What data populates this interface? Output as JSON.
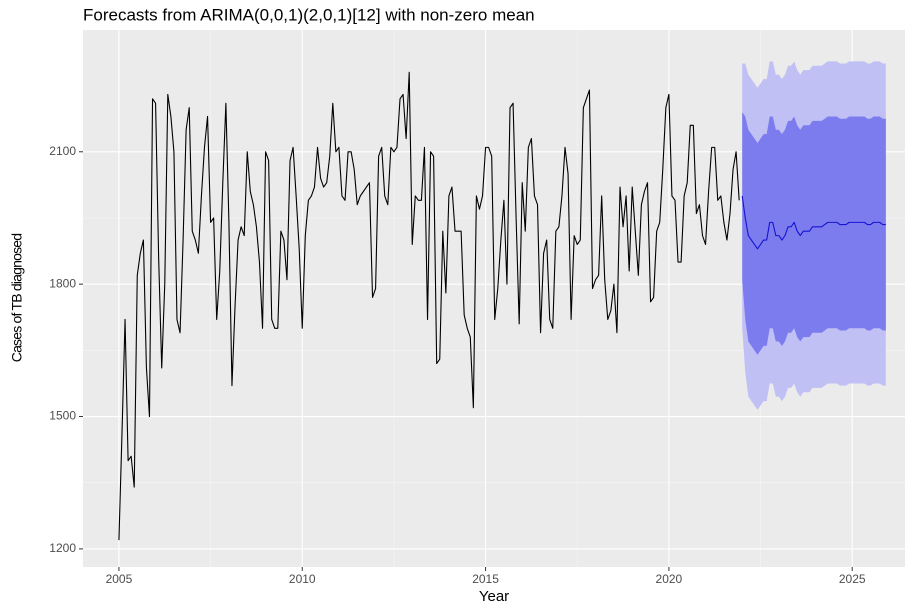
{
  "chart_data": {
    "type": "line",
    "title": "Forecasts from ARIMA(0,0,1)(2,0,1)[12] with non-zero mean",
    "xlabel": "Year",
    "ylabel": "Cases of TB diagnosed",
    "xlim": [
      2004.02,
      2026.44
    ],
    "ylim": [
      1159,
      2376
    ],
    "xticks": [
      2005,
      2010,
      2015,
      2020,
      2025
    ],
    "yticks": [
      1200,
      1500,
      1800,
      2100
    ],
    "grid": true,
    "series": [
      {
        "color": "#000000",
        "x": [
          2005,
          2005.083,
          2005.167,
          2005.25,
          2005.333,
          2005.417,
          2005.5,
          2005.583,
          2005.667,
          2005.75,
          2005.833,
          2005.917,
          2006,
          2006.083,
          2006.167,
          2006.25,
          2006.333,
          2006.417,
          2006.5,
          2006.583,
          2006.667,
          2006.75,
          2006.833,
          2006.917,
          2007,
          2007.083,
          2007.167,
          2007.25,
          2007.333,
          2007.417,
          2007.5,
          2007.583,
          2007.667,
          2007.75,
          2007.833,
          2007.917,
          2008,
          2008.083,
          2008.167,
          2008.25,
          2008.333,
          2008.417,
          2008.5,
          2008.583,
          2008.667,
          2008.75,
          2008.833,
          2008.917,
          2009,
          2009.083,
          2009.167,
          2009.25,
          2009.333,
          2009.417,
          2009.5,
          2009.583,
          2009.667,
          2009.75,
          2009.833,
          2009.917,
          2010,
          2010.083,
          2010.167,
          2010.25,
          2010.333,
          2010.417,
          2010.5,
          2010.583,
          2010.667,
          2010.75,
          2010.833,
          2010.917,
          2011,
          2011.083,
          2011.167,
          2011.25,
          2011.333,
          2011.417,
          2011.5,
          2011.583,
          2011.667,
          2011.75,
          2011.833,
          2011.917,
          2012,
          2012.083,
          2012.167,
          2012.25,
          2012.333,
          2012.417,
          2012.5,
          2012.583,
          2012.667,
          2012.75,
          2012.833,
          2012.917,
          2013,
          2013.083,
          2013.167,
          2013.25,
          2013.333,
          2013.417,
          2013.5,
          2013.583,
          2013.667,
          2013.75,
          2013.833,
          2013.917,
          2014,
          2014.083,
          2014.167,
          2014.25,
          2014.333,
          2014.417,
          2014.5,
          2014.583,
          2014.667,
          2014.75,
          2014.833,
          2014.917,
          2015,
          2015.083,
          2015.167,
          2015.25,
          2015.333,
          2015.417,
          2015.5,
          2015.583,
          2015.667,
          2015.75,
          2015.833,
          2015.917,
          2016,
          2016.083,
          2016.167,
          2016.25,
          2016.333,
          2016.417,
          2016.5,
          2016.583,
          2016.667,
          2016.75,
          2016.833,
          2016.917,
          2017,
          2017.083,
          2017.167,
          2017.25,
          2017.333,
          2017.417,
          2017.5,
          2017.583,
          2017.667,
          2017.75,
          2017.833,
          2017.917,
          2018,
          2018.083,
          2018.167,
          2018.25,
          2018.333,
          2018.417,
          2018.5,
          2018.583,
          2018.667,
          2018.75,
          2018.833,
          2018.917,
          2019,
          2019.083,
          2019.167,
          2019.25,
          2019.333,
          2019.417,
          2019.5,
          2019.583,
          2019.667,
          2019.75,
          2019.833,
          2019.917,
          2020,
          2020.083,
          2020.167,
          2020.25,
          2020.333,
          2020.417,
          2020.5,
          2020.583,
          2020.667,
          2020.75,
          2020.833,
          2020.917,
          2021,
          2021.083,
          2021.167,
          2021.25,
          2021.333,
          2021.417,
          2021.5,
          2021.583,
          2021.667,
          2021.75,
          2021.833,
          2021.917
        ],
        "values": [
          1220,
          1460,
          1720,
          1400,
          1410,
          1340,
          1820,
          1870,
          1900,
          1610,
          1500,
          2220,
          2210,
          1860,
          1610,
          1800,
          2230,
          2180,
          2100,
          1720,
          1690,
          1900,
          2150,
          2200,
          1920,
          1900,
          1870,
          2000,
          2110,
          2180,
          1940,
          1950,
          1720,
          1830,
          2030,
          2210,
          1940,
          1570,
          1750,
          1900,
          1930,
          1910,
          2100,
          2010,
          1980,
          1930,
          1850,
          1700,
          2100,
          2080,
          1720,
          1700,
          1700,
          1920,
          1900,
          1810,
          2080,
          2110,
          2000,
          1880,
          1700,
          1910,
          1990,
          2000,
          2020,
          2110,
          2040,
          2020,
          2030,
          2090,
          2210,
          2100,
          2110,
          2000,
          1990,
          2100,
          2100,
          2060,
          1980,
          2000,
          2010,
          2020,
          2030,
          1770,
          1790,
          2090,
          2110,
          2000,
          1980,
          2110,
          2100,
          2110,
          2220,
          2230,
          2130,
          2280,
          1890,
          2000,
          1990,
          1990,
          2110,
          1720,
          2100,
          2090,
          1620,
          1630,
          1920,
          1780,
          2000,
          2020,
          1920,
          1920,
          1920,
          1730,
          1700,
          1680,
          1520,
          2000,
          1970,
          2000,
          2110,
          2110,
          2090,
          1720,
          1790,
          1900,
          1990,
          1800,
          2200,
          2210,
          1950,
          1710,
          2030,
          1920,
          2110,
          2130,
          2000,
          1980,
          1690,
          1870,
          1900,
          1720,
          1700,
          1920,
          1930,
          2000,
          2110,
          2050,
          1720,
          1910,
          1890,
          1900,
          2200,
          2220,
          2240,
          1790,
          1810,
          1820,
          2000,
          1810,
          1720,
          1740,
          1800,
          1690,
          2020,
          1930,
          2000,
          1830,
          2020,
          1920,
          1820,
          1980,
          2010,
          2030,
          1760,
          1770,
          1920,
          1940,
          2060,
          2200,
          2230,
          2000,
          1990,
          1850,
          1850,
          2000,
          2030,
          2160,
          2160,
          1960,
          1980,
          1910,
          1890,
          2010,
          2110,
          2110,
          1990,
          2000,
          1940,
          1900,
          1960,
          2060,
          2100,
          1990
        ]
      },
      {
        "color": "#1414d2",
        "x": [
          2022,
          2022.083,
          2022.167,
          2022.25,
          2022.333,
          2022.417,
          2022.5,
          2022.583,
          2022.667,
          2022.75,
          2022.833,
          2022.917,
          2023,
          2023.083,
          2023.167,
          2023.25,
          2023.333,
          2023.417,
          2023.5,
          2023.583,
          2023.667,
          2023.75,
          2023.833,
          2023.917,
          2024,
          2024.083,
          2024.167,
          2024.25,
          2024.333,
          2024.417,
          2024.5,
          2024.583,
          2024.667,
          2024.75,
          2024.833,
          2024.917,
          2025,
          2025.083,
          2025.167,
          2025.25,
          2025.333,
          2025.417,
          2025.5,
          2025.583,
          2025.667,
          2025.75,
          2025.833,
          2025.917
        ],
        "values": [
          2000,
          1950,
          1910,
          1900,
          1890,
          1880,
          1890,
          1900,
          1900,
          1940,
          1940,
          1910,
          1910,
          1900,
          1910,
          1930,
          1930,
          1940,
          1920,
          1910,
          1920,
          1920,
          1920,
          1930,
          1930,
          1930,
          1930,
          1935,
          1940,
          1940,
          1940,
          1940,
          1935,
          1935,
          1935,
          1940,
          1940,
          1940,
          1940,
          1940,
          1940,
          1935,
          1935,
          1940,
          1940,
          1940,
          1935,
          1935
        ],
        "bands": [
          {
            "color": "#c0c0f5",
            "lower": [
              1700,
              1600,
              1545,
              1535,
              1525,
              1515,
              1525,
              1535,
              1535,
              1575,
              1575,
              1545,
              1545,
              1535,
              1545,
              1565,
              1565,
              1575,
              1555,
              1545,
              1555,
              1555,
              1555,
              1565,
              1565,
              1565,
              1565,
              1570,
              1575,
              1575,
              1575,
              1575,
              1570,
              1570,
              1570,
              1575,
              1575,
              1575,
              1575,
              1575,
              1575,
              1570,
              1570,
              1575,
              1575,
              1575,
              1570,
              1570
            ],
            "upper": [
              2300,
              2300,
              2275,
              2265,
              2255,
              2245,
              2255,
              2265,
              2265,
              2305,
              2305,
              2275,
              2275,
              2265,
              2275,
              2295,
              2295,
              2305,
              2285,
              2275,
              2285,
              2285,
              2285,
              2295,
              2295,
              2295,
              2295,
              2300,
              2305,
              2305,
              2305,
              2305,
              2300,
              2300,
              2300,
              2305,
              2305,
              2305,
              2305,
              2305,
              2305,
              2300,
              2300,
              2305,
              2305,
              2305,
              2300,
              2300
            ]
          },
          {
            "color": "#7c7cee",
            "lower": [
              1810,
              1720,
              1670,
              1660,
              1650,
              1640,
              1650,
              1660,
              1660,
              1700,
              1700,
              1670,
              1670,
              1660,
              1670,
              1690,
              1690,
              1700,
              1680,
              1670,
              1680,
              1680,
              1680,
              1690,
              1690,
              1690,
              1690,
              1695,
              1700,
              1700,
              1700,
              1700,
              1695,
              1695,
              1695,
              1700,
              1700,
              1700,
              1700,
              1700,
              1700,
              1695,
              1695,
              1700,
              1700,
              1700,
              1695,
              1695
            ],
            "upper": [
              2190,
              2180,
              2150,
              2140,
              2130,
              2120,
              2130,
              2140,
              2140,
              2180,
              2180,
              2150,
              2150,
              2140,
              2150,
              2170,
              2170,
              2180,
              2160,
              2150,
              2160,
              2160,
              2160,
              2170,
              2170,
              2170,
              2170,
              2175,
              2180,
              2180,
              2180,
              2180,
              2175,
              2175,
              2175,
              2180,
              2180,
              2180,
              2180,
              2180,
              2180,
              2175,
              2175,
              2180,
              2180,
              2180,
              2175,
              2175
            ]
          }
        ]
      }
    ]
  }
}
